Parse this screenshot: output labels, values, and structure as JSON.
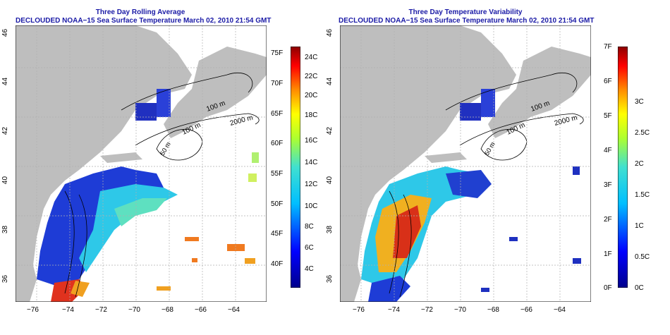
{
  "left_panel": {
    "title_line1": "Three Day Rolling Average",
    "title_line2": "DECLOUDED NOAA−15 Sea Surface Temperature March 02, 2010 21:54 GMT",
    "colorbar_f": [
      "75F",
      "70F",
      "65F",
      "60F",
      "55F",
      "50F",
      "45F",
      "40F"
    ],
    "colorbar_c": [
      "24C",
      "22C",
      "20C",
      "18C",
      "16C",
      "14C",
      "12C",
      "10C",
      "8C",
      "6C",
      "4C"
    ]
  },
  "right_panel": {
    "title_line1": "Three Day Temperature Variability",
    "title_line2": "DECLOUDED NOAA−15 Sea Surface Temperature March 02, 2010 21:54 GMT",
    "colorbar_f": [
      "7F",
      "6F",
      "5F",
      "4F",
      "3F",
      "2F",
      "1F",
      "0F"
    ],
    "colorbar_c": [
      "3C",
      "2.5C",
      "2C",
      "1.5C",
      "1C",
      "0.5C",
      "0C"
    ]
  },
  "lat_ticks": [
    "46",
    "44",
    "42",
    "40",
    "38",
    "36"
  ],
  "lon_ticks": [
    "−76",
    "−74",
    "−72",
    "−70",
    "−68",
    "−66",
    "−64"
  ],
  "contour_labels": {
    "c100a": "100 m",
    "c2000": "2000 m",
    "c100b": "100 m",
    "c50": "50 m"
  },
  "colors": {
    "title": "#1a1aa6",
    "land": "#bebebe",
    "ocean": "#ffffff"
  }
}
